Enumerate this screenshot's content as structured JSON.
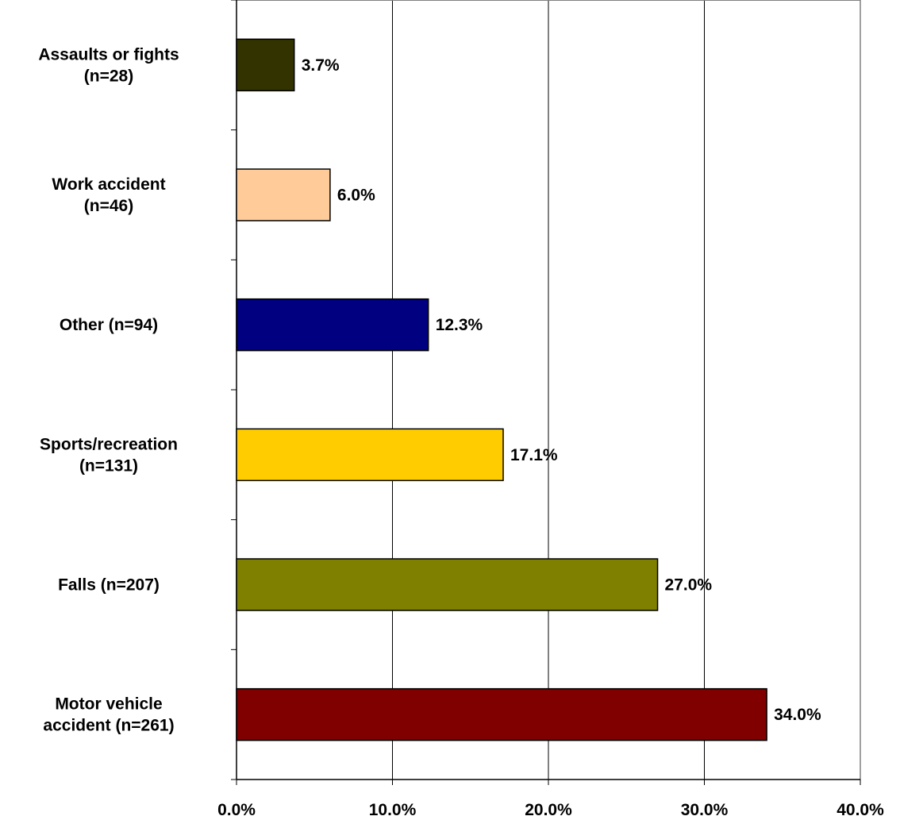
{
  "chart_data": {
    "type": "bar",
    "orientation": "horizontal",
    "categories": [
      [
        "Assaults or fights",
        "(n=28)"
      ],
      [
        "Work accident",
        "(n=46)"
      ],
      [
        "Other (n=94)"
      ],
      [
        "Sports/recreation",
        "(n=131)"
      ],
      [
        "Falls (n=207)"
      ],
      [
        "Motor vehicle",
        "accident (n=261)"
      ]
    ],
    "values": [
      3.7,
      6.0,
      12.3,
      17.1,
      27.0,
      34.0
    ],
    "value_labels": [
      "3.7%",
      "6.0%",
      "12.3%",
      "17.1%",
      "27.0%",
      "34.0%"
    ],
    "colors": [
      "#333300",
      "#FFCC99",
      "#000080",
      "#FFCC00",
      "#808000",
      "#800000"
    ],
    "xlim": [
      0,
      40
    ],
    "xticks": [
      0,
      10,
      20,
      30,
      40
    ],
    "xtick_labels": [
      "0.0%",
      "10.0%",
      "20.0%",
      "30.0%",
      "40.0%"
    ],
    "grid": "vertical",
    "legend": "none"
  }
}
